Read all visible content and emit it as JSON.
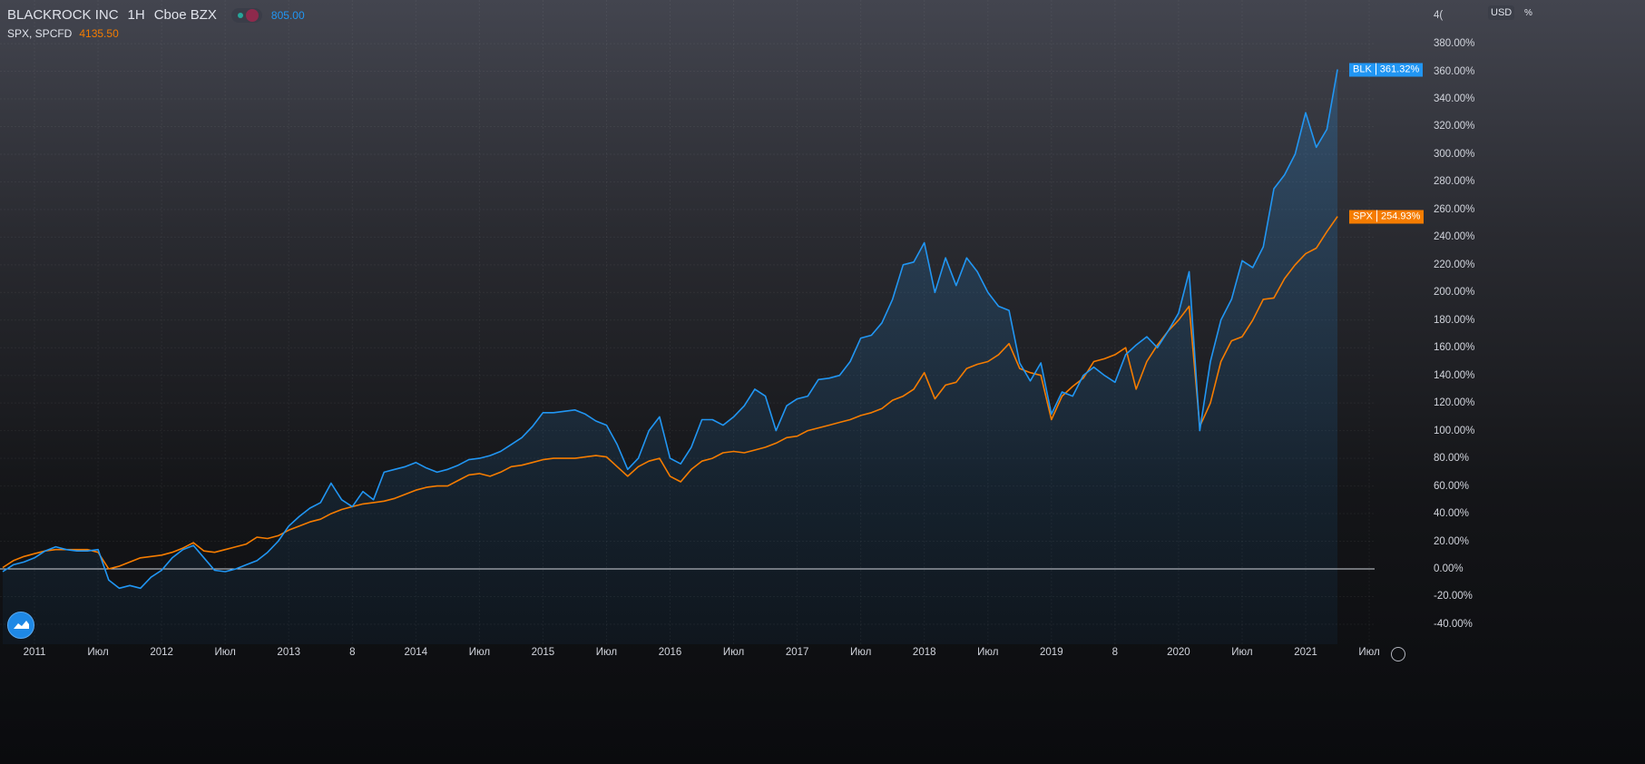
{
  "header": {
    "symbol": "BLACKROCK INC",
    "interval": "1H",
    "exchange": "Cboe BZX",
    "price": "805.00",
    "compare_symbol": "SPX, SPCFD",
    "compare_price": "4135.50"
  },
  "axis": {
    "currency": "USD",
    "percent_label": "%",
    "top_partial": "4("
  },
  "colors": {
    "blk": "#2196f3",
    "spx": "#f57c00",
    "baseline": "#d1d4dc"
  },
  "icons": {
    "logo": "tradingview-logo-icon",
    "settings": "gear-icon"
  },
  "chart_data": {
    "type": "line",
    "y_unit": "%",
    "ylim": [
      -50,
      400
    ],
    "grid": true,
    "baseline": 0,
    "y_ticks": [
      "380.00%",
      "360.00%",
      "340.00%",
      "320.00%",
      "300.00%",
      "280.00%",
      "260.00%",
      "240.00%",
      "220.00%",
      "200.00%",
      "180.00%",
      "160.00%",
      "140.00%",
      "120.00%",
      "100.00%",
      "80.00%",
      "60.00%",
      "40.00%",
      "20.00%",
      "0.00%",
      "-20.00%",
      "-40.00%"
    ],
    "y_tick_values": [
      380,
      360,
      340,
      320,
      300,
      280,
      260,
      240,
      220,
      200,
      180,
      160,
      140,
      120,
      100,
      80,
      60,
      40,
      20,
      0,
      -20,
      -40
    ],
    "x_ticks": [
      {
        "label": "2011",
        "date": "2011-01"
      },
      {
        "label": "Июл",
        "date": "2011-07"
      },
      {
        "label": "2012",
        "date": "2012-01"
      },
      {
        "label": "Июл",
        "date": "2012-07"
      },
      {
        "label": "2013",
        "date": "2013-01"
      },
      {
        "label": "8",
        "date": "2013-07"
      },
      {
        "label": "2014",
        "date": "2014-01"
      },
      {
        "label": "Июл",
        "date": "2014-07"
      },
      {
        "label": "2015",
        "date": "2015-01"
      },
      {
        "label": "Июл",
        "date": "2015-07"
      },
      {
        "label": "2016",
        "date": "2016-01"
      },
      {
        "label": "Июл",
        "date": "2016-07"
      },
      {
        "label": "2017",
        "date": "2017-01"
      },
      {
        "label": "Июл",
        "date": "2017-07"
      },
      {
        "label": "2018",
        "date": "2018-01"
      },
      {
        "label": "Июл",
        "date": "2018-07"
      },
      {
        "label": "2019",
        "date": "2019-01"
      },
      {
        "label": "8",
        "date": "2019-07"
      },
      {
        "label": "2020",
        "date": "2020-01"
      },
      {
        "label": "Июл",
        "date": "2020-07"
      },
      {
        "label": "2021",
        "date": "2021-01"
      },
      {
        "label": "Июл",
        "date": "2021-07"
      }
    ],
    "x_start": "2010-10",
    "x_end": "2021-04",
    "series": [
      {
        "name": "BLK",
        "last_label": "361.32%",
        "color": "#2196f3",
        "values": [
          -2,
          3,
          5,
          8,
          13,
          16,
          14,
          13,
          13,
          14,
          -8,
          -14,
          -12,
          -14,
          -6,
          -1,
          8,
          14,
          17,
          8,
          -1,
          -2,
          0,
          3,
          6,
          12,
          20,
          31,
          38,
          44,
          48,
          62,
          50,
          45,
          56,
          50,
          70,
          72,
          74,
          77,
          73,
          70,
          72,
          75,
          79,
          80,
          82,
          85,
          90,
          95,
          103,
          113,
          113,
          114,
          115,
          112,
          107,
          104,
          90,
          72,
          80,
          100,
          110,
          80,
          76,
          88,
          108,
          108,
          104,
          110,
          118,
          130,
          125,
          100,
          118,
          123,
          125,
          137,
          138,
          140,
          150,
          167,
          169,
          178,
          195,
          220,
          222,
          236,
          200,
          225,
          205,
          225,
          215,
          200,
          190,
          187,
          149,
          136,
          149,
          112,
          128,
          125,
          140,
          146,
          140,
          135,
          155,
          162,
          168,
          160,
          172,
          185,
          215,
          100,
          150,
          180,
          195,
          223,
          218,
          233,
          275,
          285,
          300,
          330,
          305,
          318,
          361.32
        ]
      },
      {
        "name": "SPX",
        "last_label": "254.93%",
        "color": "#f57c00",
        "values": [
          1,
          6,
          9,
          11,
          13,
          14,
          14,
          14,
          14,
          12,
          0,
          2,
          5,
          8,
          9,
          10,
          12,
          15,
          19,
          13,
          12,
          14,
          16,
          18,
          23,
          22,
          24,
          28,
          31,
          34,
          36,
          40,
          43,
          45,
          47,
          48,
          49,
          51,
          54,
          57,
          59,
          60,
          60,
          64,
          68,
          69,
          67,
          70,
          74,
          75,
          77,
          79,
          80,
          80,
          80,
          81,
          82,
          81,
          74,
          67,
          74,
          78,
          80,
          67,
          63,
          72,
          78,
          80,
          84,
          85,
          84,
          86,
          88,
          91,
          95,
          96,
          100,
          102,
          104,
          106,
          108,
          111,
          113,
          116,
          122,
          125,
          130,
          142,
          123,
          133,
          135,
          145,
          148,
          150,
          155,
          163,
          145,
          142,
          140,
          108,
          125,
          132,
          138,
          150,
          152,
          155,
          160,
          130,
          150,
          162,
          172,
          180,
          190,
          103,
          120,
          150,
          165,
          168,
          180,
          195,
          196,
          210,
          220,
          228,
          232,
          244,
          254.93
        ]
      }
    ]
  }
}
